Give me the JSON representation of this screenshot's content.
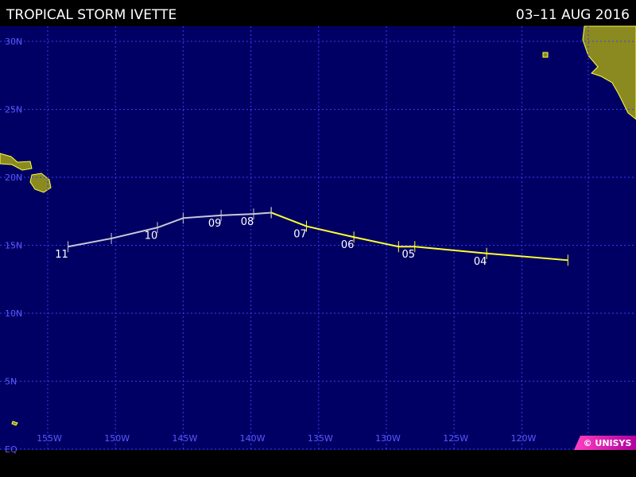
{
  "header": {
    "title": "TROPICAL STORM IVETTE",
    "dates": "03–11 AUG 2016"
  },
  "map": {
    "lat_ticks": [
      {
        "value": 30,
        "label": "30N"
      },
      {
        "value": 25,
        "label": "25N"
      },
      {
        "value": 20,
        "label": "20N"
      },
      {
        "value": 15,
        "label": "15N"
      },
      {
        "value": 10,
        "label": "10N"
      },
      {
        "value": 5,
        "label": "5N"
      },
      {
        "value": 0,
        "label": "EQ"
      }
    ],
    "lon_ticks": [
      {
        "value": -155,
        "label": "155W"
      },
      {
        "value": -150,
        "label": "150W"
      },
      {
        "value": -145,
        "label": "145W"
      },
      {
        "value": -140,
        "label": "140W"
      },
      {
        "value": -135,
        "label": "135W"
      },
      {
        "value": -130,
        "label": "130W"
      },
      {
        "value": -125,
        "label": "125W"
      },
      {
        "value": -120,
        "label": "120W"
      }
    ],
    "track_segments": [
      {
        "color": "#ffff33",
        "lon": [
          -116.6,
          -122.6,
          -127.9,
          -129.1,
          -132.4,
          -135.9,
          -138.5
        ],
        "lat": [
          13.9,
          14.4,
          14.9,
          14.9,
          15.6,
          16.4,
          17.4
        ]
      },
      {
        "color": "#c8c8d8",
        "lon": [
          -138.5,
          -139.8,
          -142.2,
          -145.0,
          -146.9,
          -150.3,
          -153.5
        ],
        "lat": [
          17.4,
          17.3,
          17.2,
          17.0,
          16.3,
          15.5,
          14.9
        ]
      }
    ],
    "day_labels": [
      {
        "label": "04",
        "lon": -122.6,
        "lat": 14.4
      },
      {
        "label": "05",
        "lon": -127.9,
        "lat": 14.9
      },
      {
        "label": "06",
        "lon": -132.4,
        "lat": 15.6
      },
      {
        "label": "07",
        "lon": -135.9,
        "lat": 16.4
      },
      {
        "label": "08",
        "lon": -139.8,
        "lat": 17.3
      },
      {
        "label": "09",
        "lon": -142.2,
        "lat": 17.2
      },
      {
        "label": "10",
        "lon": -146.9,
        "lat": 16.3
      },
      {
        "label": "11",
        "lon": -153.5,
        "lat": 14.9
      }
    ]
  },
  "footer": {
    "credit": "© UNISYS"
  }
}
